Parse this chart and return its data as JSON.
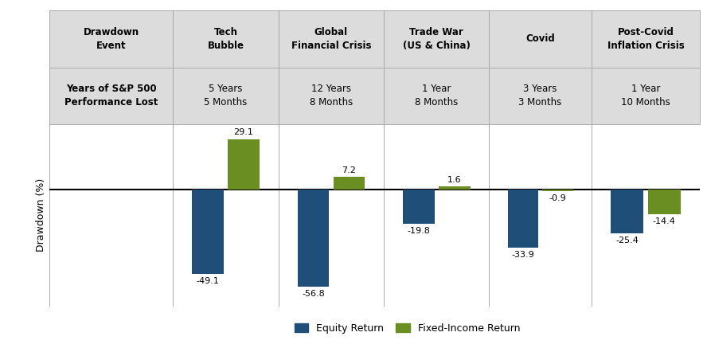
{
  "events": [
    "Tech\nBubble",
    "Global\nFinancial Crisis",
    "Trade War\n(US & China)",
    "Covid",
    "Post-Covid\nInflation Crisis"
  ],
  "years_lost": [
    "5 Years\n5 Months",
    "12 Years\n8 Months",
    "1 Year\n8 Months",
    "3 Years\n3 Months",
    "1 Year\n10 Months"
  ],
  "equity_returns": [
    -49.1,
    -56.8,
    -19.8,
    -33.9,
    -25.4
  ],
  "fixed_income_returns": [
    29.1,
    7.2,
    1.6,
    -0.9,
    -14.4
  ],
  "equity_color": "#1F4E79",
  "fixed_income_color": "#6B8E23",
  "ylabel": "Drawdown (%)",
  "header_bg": "#DCDCDC",
  "chart_bg": "#FFFFFF",
  "grid_line_color": "#AAAAAA",
  "background_color": "#FFFFFF",
  "legend_equity": "Equity Return",
  "legend_fixed": "Fixed-Income Return",
  "drawdown_event_label": "Drawdown\nEvent",
  "years_lost_label": "Years of S&P 500\nPerformance Lost",
  "ymin": -68,
  "ymax": 38
}
